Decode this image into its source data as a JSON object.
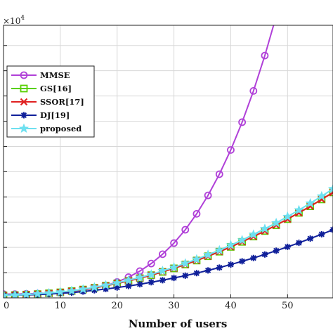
{
  "chart_data": {
    "type": "line",
    "xlabel": "Number of users",
    "ylabel": "",
    "exponent_label": "×10",
    "exponent_power": "4",
    "xlim": [
      0,
      58
    ],
    "ylim": [
      0,
      10.8
    ],
    "x_ticks": [
      0,
      10,
      20,
      30,
      40,
      50
    ],
    "x_tick_labels": [
      "0",
      "10",
      "20",
      "30",
      "40",
      "50"
    ],
    "y_ticks": [
      0,
      1,
      2,
      3,
      4,
      5,
      6,
      7,
      8,
      9,
      10
    ],
    "grid": true,
    "legend_position": "top-left",
    "series": [
      {
        "name": "MMSE",
        "color": "#b040d8",
        "marker": "circle",
        "x": [
          0,
          2,
          4,
          6,
          8,
          10,
          12,
          14,
          16,
          18,
          20,
          22,
          24,
          26,
          28,
          30,
          32,
          34,
          36,
          38,
          40,
          42,
          44,
          46,
          48,
          49
        ],
        "values": [
          0.15,
          0.15,
          0.16,
          0.17,
          0.19,
          0.22,
          0.26,
          0.31,
          0.38,
          0.49,
          0.63,
          0.82,
          1.06,
          1.36,
          1.73,
          2.17,
          2.7,
          3.33,
          4.06,
          4.9,
          5.86,
          6.96,
          8.2,
          9.6,
          11.16,
          12.0
        ]
      },
      {
        "name": "GS[16]",
        "color": "#58d000",
        "marker": "square",
        "x": [
          0,
          2,
          4,
          6,
          8,
          10,
          12,
          14,
          16,
          18,
          20,
          22,
          24,
          26,
          28,
          30,
          32,
          34,
          36,
          38,
          40,
          42,
          44,
          46,
          48,
          50,
          52,
          54,
          56,
          58
        ],
        "values": [
          0.1,
          0.11,
          0.13,
          0.15,
          0.18,
          0.22,
          0.27,
          0.33,
          0.4,
          0.48,
          0.57,
          0.67,
          0.78,
          0.9,
          1.03,
          1.17,
          1.32,
          1.48,
          1.65,
          1.83,
          2.02,
          2.22,
          2.43,
          2.65,
          2.88,
          3.12,
          3.37,
          3.63,
          3.9,
          4.18
        ]
      },
      {
        "name": "SSOR[17]",
        "color": "#e02020",
        "marker": "x",
        "x": [
          0,
          2,
          4,
          6,
          8,
          10,
          12,
          14,
          16,
          18,
          20,
          22,
          24,
          26,
          28,
          30,
          32,
          34,
          36,
          38,
          40,
          42,
          44,
          46,
          48,
          50,
          52,
          54,
          56,
          58
        ],
        "values": [
          0.1,
          0.11,
          0.13,
          0.15,
          0.18,
          0.22,
          0.27,
          0.33,
          0.4,
          0.48,
          0.57,
          0.67,
          0.78,
          0.9,
          1.03,
          1.17,
          1.32,
          1.48,
          1.65,
          1.83,
          2.02,
          2.22,
          2.43,
          2.65,
          2.88,
          3.12,
          3.37,
          3.63,
          3.9,
          4.18
        ]
      },
      {
        "name": "DJ[19]",
        "color": "#10209a",
        "marker": "asterisk",
        "x": [
          0,
          2,
          4,
          6,
          8,
          10,
          12,
          14,
          16,
          18,
          20,
          22,
          24,
          26,
          28,
          30,
          32,
          34,
          36,
          38,
          40,
          42,
          44,
          46,
          48,
          50,
          52,
          54,
          56,
          58
        ],
        "values": [
          0.1,
          0.11,
          0.12,
          0.13,
          0.15,
          0.18,
          0.21,
          0.25,
          0.3,
          0.35,
          0.41,
          0.47,
          0.54,
          0.62,
          0.7,
          0.79,
          0.88,
          0.98,
          1.09,
          1.2,
          1.32,
          1.45,
          1.58,
          1.72,
          1.87,
          2.02,
          2.18,
          2.35,
          2.52,
          2.7
        ]
      },
      {
        "name": "proposed",
        "color": "#6ee0f0",
        "marker": "star",
        "x": [
          0,
          2,
          4,
          6,
          8,
          10,
          12,
          14,
          16,
          18,
          20,
          22,
          24,
          26,
          28,
          30,
          32,
          34,
          36,
          38,
          40,
          42,
          44,
          46,
          48,
          50,
          52,
          54,
          56,
          58
        ],
        "values": [
          0.1,
          0.11,
          0.13,
          0.16,
          0.19,
          0.23,
          0.28,
          0.34,
          0.42,
          0.5,
          0.59,
          0.7,
          0.81,
          0.93,
          1.07,
          1.21,
          1.37,
          1.53,
          1.71,
          1.89,
          2.09,
          2.29,
          2.51,
          2.74,
          2.97,
          3.22,
          3.48,
          3.75,
          4.03,
          4.32
        ]
      }
    ]
  }
}
